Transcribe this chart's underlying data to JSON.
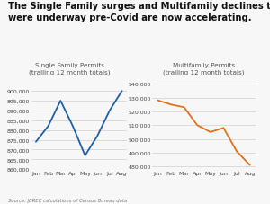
{
  "title": "The Single Family surges and Multifamily declines that\nwere underway pre-Covid are now accelerating.",
  "source": "Source: JBREC calculations of Census Bureau data",
  "sf_label": "Single Family Permits\n(trailing 12 month totals)",
  "mf_label": "Multifamily Permits\n(trailing 12 month totals)",
  "months": [
    "Jan",
    "Feb",
    "Mar",
    "Apr",
    "May",
    "Jun",
    "Jul",
    "Aug"
  ],
  "sf_values": [
    874000,
    882000,
    895000,
    882000,
    867000,
    877000,
    890000,
    900000
  ],
  "mf_values": [
    528000,
    525000,
    523000,
    510000,
    505000,
    508000,
    491000,
    481000
  ],
  "sf_color": "#1f5fa6",
  "mf_color": "#e07020",
  "sf_ylim": [
    860000,
    905000
  ],
  "mf_ylim": [
    478000,
    542000
  ],
  "sf_yticks": [
    860000,
    865000,
    870000,
    875000,
    880000,
    885000,
    890000,
    895000,
    900000
  ],
  "mf_yticks": [
    480000,
    490000,
    500000,
    510000,
    520000,
    530000,
    540000
  ],
  "background_color": "#f7f7f7",
  "title_fontsize": 7.2,
  "label_fontsize": 5.2,
  "tick_fontsize": 4.5,
  "source_fontsize": 3.8
}
